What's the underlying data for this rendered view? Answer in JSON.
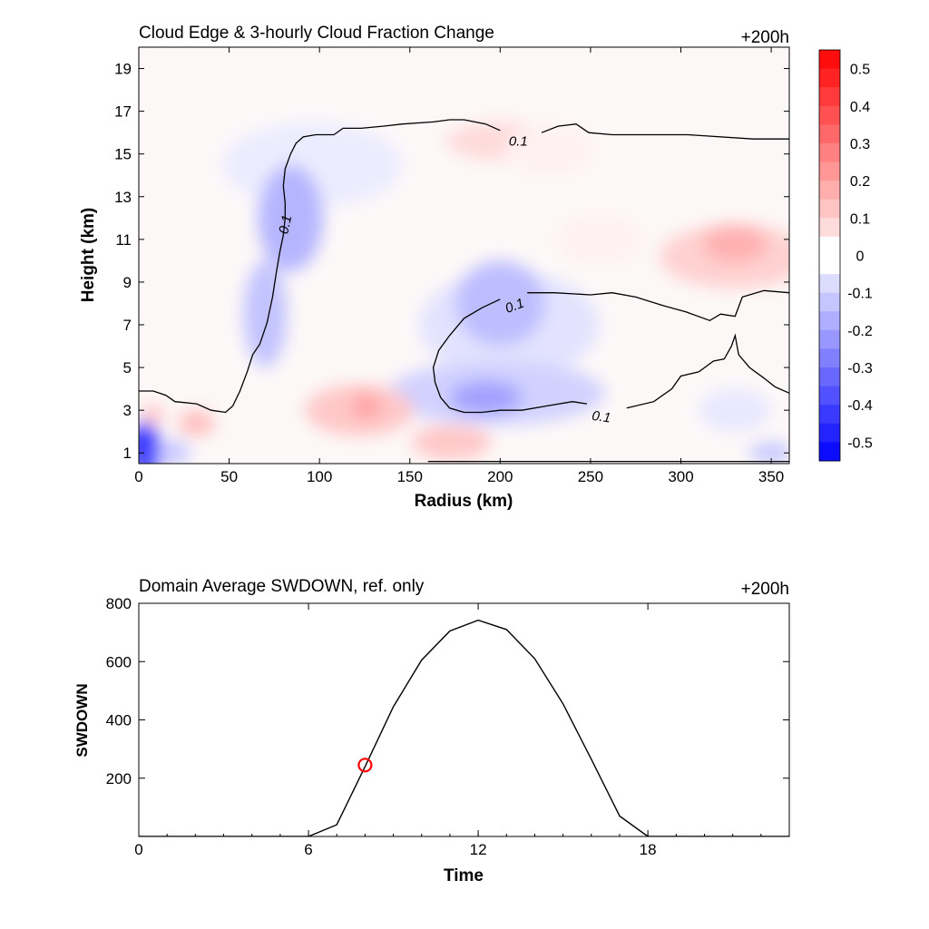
{
  "chart_data": [
    {
      "type": "contour",
      "title": "Cloud Edge & 3-hourly Cloud Fraction Change",
      "time_label": "+200h",
      "xlabel": "Radius (km)",
      "ylabel": "Height (km)",
      "xlim": [
        0,
        360
      ],
      "ylim": [
        0.5,
        20
      ],
      "xticks": [
        0,
        50,
        100,
        150,
        200,
        250,
        300,
        350
      ],
      "yticks": [
        1,
        3,
        5,
        7,
        9,
        11,
        13,
        15,
        17,
        19
      ],
      "colorbar": {
        "range": [
          -0.55,
          0.55
        ],
        "ticks": [
          0.5,
          0.4,
          0.3,
          0.2,
          0.1,
          0,
          -0.1,
          -0.2,
          -0.3,
          -0.4,
          -0.5
        ],
        "tick_labels": [
          "0.5",
          "0.4",
          "0.3",
          "0.2",
          "0.1",
          "0",
          "-0.1",
          "-0.2",
          "-0.3",
          "-0.4",
          "-0.5"
        ],
        "colormap": "blue-white-red",
        "min_color": "#0000ff",
        "max_color": "#ff0000"
      },
      "contour_level": 0.1,
      "contour_labels": [
        {
          "text": "0.1",
          "x": 210,
          "y": 15.6,
          "angle": 0
        },
        {
          "text": "0.1",
          "x": 81,
          "y": 11.7,
          "angle": -78
        },
        {
          "text": "0.1",
          "x": 208,
          "y": 7.9,
          "angle": -20
        },
        {
          "text": "0.1",
          "x": 256,
          "y": 2.7,
          "angle": 8
        }
      ],
      "contours": [
        [
          [
            0,
            3.9
          ],
          [
            8,
            3.9
          ],
          [
            15,
            3.7
          ],
          [
            20,
            3.4
          ],
          [
            32,
            3.3
          ],
          [
            40,
            3.0
          ],
          [
            48,
            2.9
          ],
          [
            52,
            3.2
          ],
          [
            56,
            3.9
          ],
          [
            60,
            4.8
          ],
          [
            63,
            5.6
          ],
          [
            67,
            6.1
          ],
          [
            71,
            7.1
          ],
          [
            74,
            8.3
          ],
          [
            76,
            9.4
          ],
          [
            78,
            10.4
          ],
          [
            80,
            11.2
          ],
          [
            81,
            12.0
          ],
          [
            81,
            12.7
          ],
          [
            80,
            13.5
          ],
          [
            81,
            14.3
          ],
          [
            84,
            15.0
          ],
          [
            87,
            15.5
          ],
          [
            91,
            15.8
          ],
          [
            98,
            15.9
          ],
          [
            108,
            15.9
          ],
          [
            113,
            16.2
          ],
          [
            123,
            16.2
          ],
          [
            135,
            16.3
          ],
          [
            146,
            16.4
          ],
          [
            163,
            16.5
          ],
          [
            172,
            16.6
          ],
          [
            180,
            16.6
          ],
          [
            192,
            16.4
          ],
          [
            200,
            16.1
          ]
        ],
        [
          [
            223,
            16.0
          ],
          [
            232,
            16.3
          ],
          [
            242,
            16.4
          ],
          [
            249,
            16.0
          ],
          [
            262,
            15.9
          ],
          [
            282,
            15.9
          ],
          [
            304,
            15.9
          ],
          [
            340,
            15.7
          ],
          [
            360,
            15.7
          ]
        ],
        [
          [
            200,
            8.2
          ],
          [
            190,
            7.8
          ],
          [
            180,
            7.3
          ],
          [
            172,
            6.5
          ],
          [
            166,
            5.8
          ],
          [
            163,
            5.0
          ],
          [
            164,
            4.3
          ],
          [
            167,
            3.6
          ],
          [
            172,
            3.1
          ],
          [
            180,
            2.9
          ],
          [
            190,
            2.9
          ],
          [
            200,
            3.0
          ],
          [
            212,
            3.0
          ],
          [
            226,
            3.2
          ],
          [
            240,
            3.4
          ],
          [
            248,
            3.3
          ]
        ],
        [
          [
            215,
            8.5
          ],
          [
            230,
            8.5
          ],
          [
            250,
            8.4
          ],
          [
            262,
            8.5
          ],
          [
            275,
            8.3
          ],
          [
            290,
            7.9
          ],
          [
            303,
            7.6
          ],
          [
            316,
            7.2
          ],
          [
            322,
            7.5
          ],
          [
            330,
            7.4
          ],
          [
            334,
            8.3
          ],
          [
            346,
            8.6
          ],
          [
            360,
            8.5
          ]
        ],
        [
          [
            270,
            3.1
          ],
          [
            285,
            3.4
          ],
          [
            295,
            4.0
          ],
          [
            300,
            4.6
          ],
          [
            310,
            4.8
          ],
          [
            318,
            5.3
          ],
          [
            324,
            5.4
          ],
          [
            328,
            6.0
          ],
          [
            330,
            6.5
          ],
          [
            332,
            5.6
          ],
          [
            338,
            5.0
          ],
          [
            346,
            4.5
          ],
          [
            352,
            4.1
          ],
          [
            360,
            3.8
          ]
        ],
        [
          [
            160,
            0.6
          ],
          [
            200,
            0.6
          ],
          [
            250,
            0.6
          ],
          [
            300,
            0.6
          ],
          [
            360,
            0.6
          ]
        ]
      ],
      "anomalies": [
        {
          "x": 96,
          "y": 14.5,
          "rx": 50,
          "ry": 2.0,
          "v": -0.04
        },
        {
          "x": 84,
          "y": 12.0,
          "rx": 18,
          "ry": 2.5,
          "v": -0.16
        },
        {
          "x": 70,
          "y": 7.5,
          "rx": 12,
          "ry": 2.5,
          "v": -0.13
        },
        {
          "x": 205,
          "y": 7.0,
          "rx": 50,
          "ry": 2.5,
          "v": -0.06
        },
        {
          "x": 200,
          "y": 8.0,
          "rx": 25,
          "ry": 2.0,
          "v": -0.14
        },
        {
          "x": 198,
          "y": 3.8,
          "rx": 60,
          "ry": 1.5,
          "v": -0.1
        },
        {
          "x": 192,
          "y": 3.6,
          "rx": 20,
          "ry": 0.8,
          "v": -0.2
        },
        {
          "x": 3,
          "y": 1.1,
          "rx": 9,
          "ry": 1.4,
          "v": -0.38
        },
        {
          "x": 0,
          "y": 1.5,
          "rx": 4,
          "ry": 0.6,
          "v": -0.6
        },
        {
          "x": 20,
          "y": 1.0,
          "rx": 8,
          "ry": 0.6,
          "v": -0.12
        },
        {
          "x": 350,
          "y": 1.0,
          "rx": 12,
          "ry": 0.5,
          "v": -0.12
        },
        {
          "x": 330,
          "y": 3.0,
          "rx": 20,
          "ry": 1.0,
          "v": -0.05
        },
        {
          "x": 200,
          "y": 15.6,
          "rx": 30,
          "ry": 0.9,
          "v": 0.08
        },
        {
          "x": 122,
          "y": 3.0,
          "rx": 30,
          "ry": 1.2,
          "v": 0.12
        },
        {
          "x": 126,
          "y": 3.2,
          "rx": 8,
          "ry": 0.6,
          "v": 0.2
        },
        {
          "x": 173,
          "y": 1.5,
          "rx": 22,
          "ry": 0.8,
          "v": 0.12
        },
        {
          "x": 32,
          "y": 2.4,
          "rx": 10,
          "ry": 0.6,
          "v": 0.14
        },
        {
          "x": 8,
          "y": 2.8,
          "rx": 6,
          "ry": 0.5,
          "v": 0.12
        },
        {
          "x": 330,
          "y": 10.2,
          "rx": 42,
          "ry": 1.5,
          "v": 0.1
        },
        {
          "x": 330,
          "y": 10.8,
          "rx": 18,
          "ry": 0.9,
          "v": 0.17
        },
        {
          "x": 255,
          "y": 11.0,
          "rx": 25,
          "ry": 1.2,
          "v": 0.03
        },
        {
          "x": 228,
          "y": 15.2,
          "rx": 25,
          "ry": 1.2,
          "v": 0.03
        }
      ]
    },
    {
      "type": "line",
      "title": "Domain Average SWDOWN, ref. only",
      "time_label": "+200h",
      "xlabel": "Time",
      "ylabel": "SWDOWN",
      "xlim": [
        0,
        23
      ],
      "ylim": [
        0,
        800
      ],
      "xticks": [
        0,
        6,
        12,
        18
      ],
      "yticks": [
        200,
        400,
        600,
        800
      ],
      "line_color": "#000000",
      "x": [
        0,
        1,
        2,
        3,
        4,
        5,
        6,
        7,
        8,
        9,
        10,
        11,
        12,
        13,
        14,
        15,
        16,
        17,
        18,
        19,
        20,
        21,
        22,
        23
      ],
      "values": [
        0,
        0,
        0,
        0,
        0,
        0,
        0,
        40,
        240,
        445,
        605,
        705,
        742,
        710,
        610,
        455,
        265,
        70,
        0,
        0,
        0,
        0,
        0,
        0
      ],
      "marker": {
        "x": 8,
        "y": 245,
        "color": "#ff0000",
        "shape": "open-circle"
      }
    }
  ]
}
